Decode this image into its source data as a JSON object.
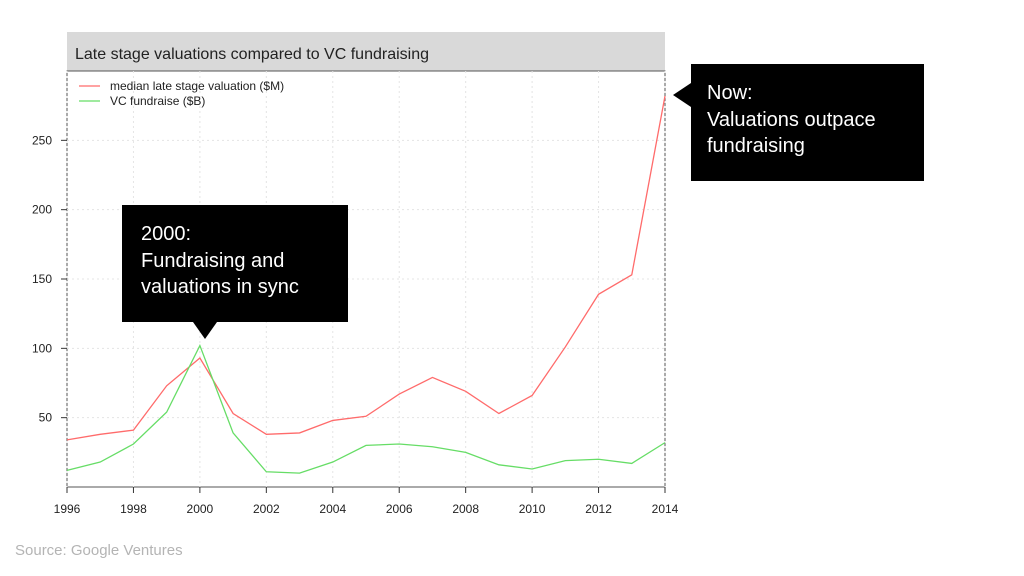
{
  "chart_data": {
    "type": "line",
    "title": "Late stage valuations compared to VC fundraising",
    "xlabel": "",
    "ylabel": "",
    "xlim": [
      1996,
      2014
    ],
    "ylim": [
      0,
      300
    ],
    "x_ticks": [
      1996,
      1998,
      2000,
      2002,
      2004,
      2006,
      2008,
      2010,
      2012,
      2014
    ],
    "y_ticks": [
      50,
      100,
      150,
      200,
      250
    ],
    "grid": true,
    "legend_position": "top-left",
    "x": [
      1996,
      1997,
      1998,
      1999,
      2000,
      2001,
      2002,
      2003,
      2004,
      2005,
      2006,
      2007,
      2008,
      2009,
      2010,
      2011,
      2012,
      2013,
      2014
    ],
    "series": [
      {
        "name": "median late stage valuation ($M)",
        "color": "#ff6b6b",
        "values": [
          34,
          38,
          41,
          73,
          93,
          53,
          38,
          39,
          48,
          51,
          67,
          79,
          69,
          53,
          66,
          101,
          139,
          153,
          282
        ]
      },
      {
        "name": "VC fundraise ($B)",
        "color": "#66dd66",
        "values": [
          12,
          18,
          31,
          54,
          102,
          39,
          11,
          10,
          18,
          30,
          31,
          29,
          25,
          16,
          13,
          19,
          20,
          17,
          32
        ]
      }
    ]
  },
  "annotations": {
    "now": {
      "lines": [
        "Now:",
        "Valuations outpace",
        "fundraising"
      ]
    },
    "y2000": {
      "lines": [
        "2000:",
        "Fundraising and",
        "valuations in sync"
      ]
    }
  },
  "source": "Source: Google Ventures"
}
